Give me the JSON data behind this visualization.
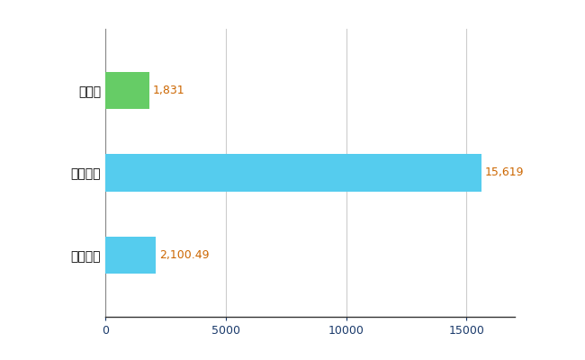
{
  "categories": [
    "全国平均",
    "全国最大",
    "茨城県"
  ],
  "values": [
    2100.49,
    15619,
    1831
  ],
  "bar_colors": [
    "#55CCEE",
    "#55CCEE",
    "#66CC66"
  ],
  "bar_labels": [
    "2,100.49",
    "15,619",
    "1,831"
  ],
  "xlim": [
    0,
    17000
  ],
  "xticks": [
    0,
    5000,
    10000,
    15000
  ],
  "background_color": "#ffffff",
  "grid_color": "#cccccc",
  "label_color": "#CC6600",
  "xtick_color": "#1a3a6b",
  "bar_height": 0.45,
  "figsize": [
    6.5,
    4.0
  ],
  "dpi": 100
}
